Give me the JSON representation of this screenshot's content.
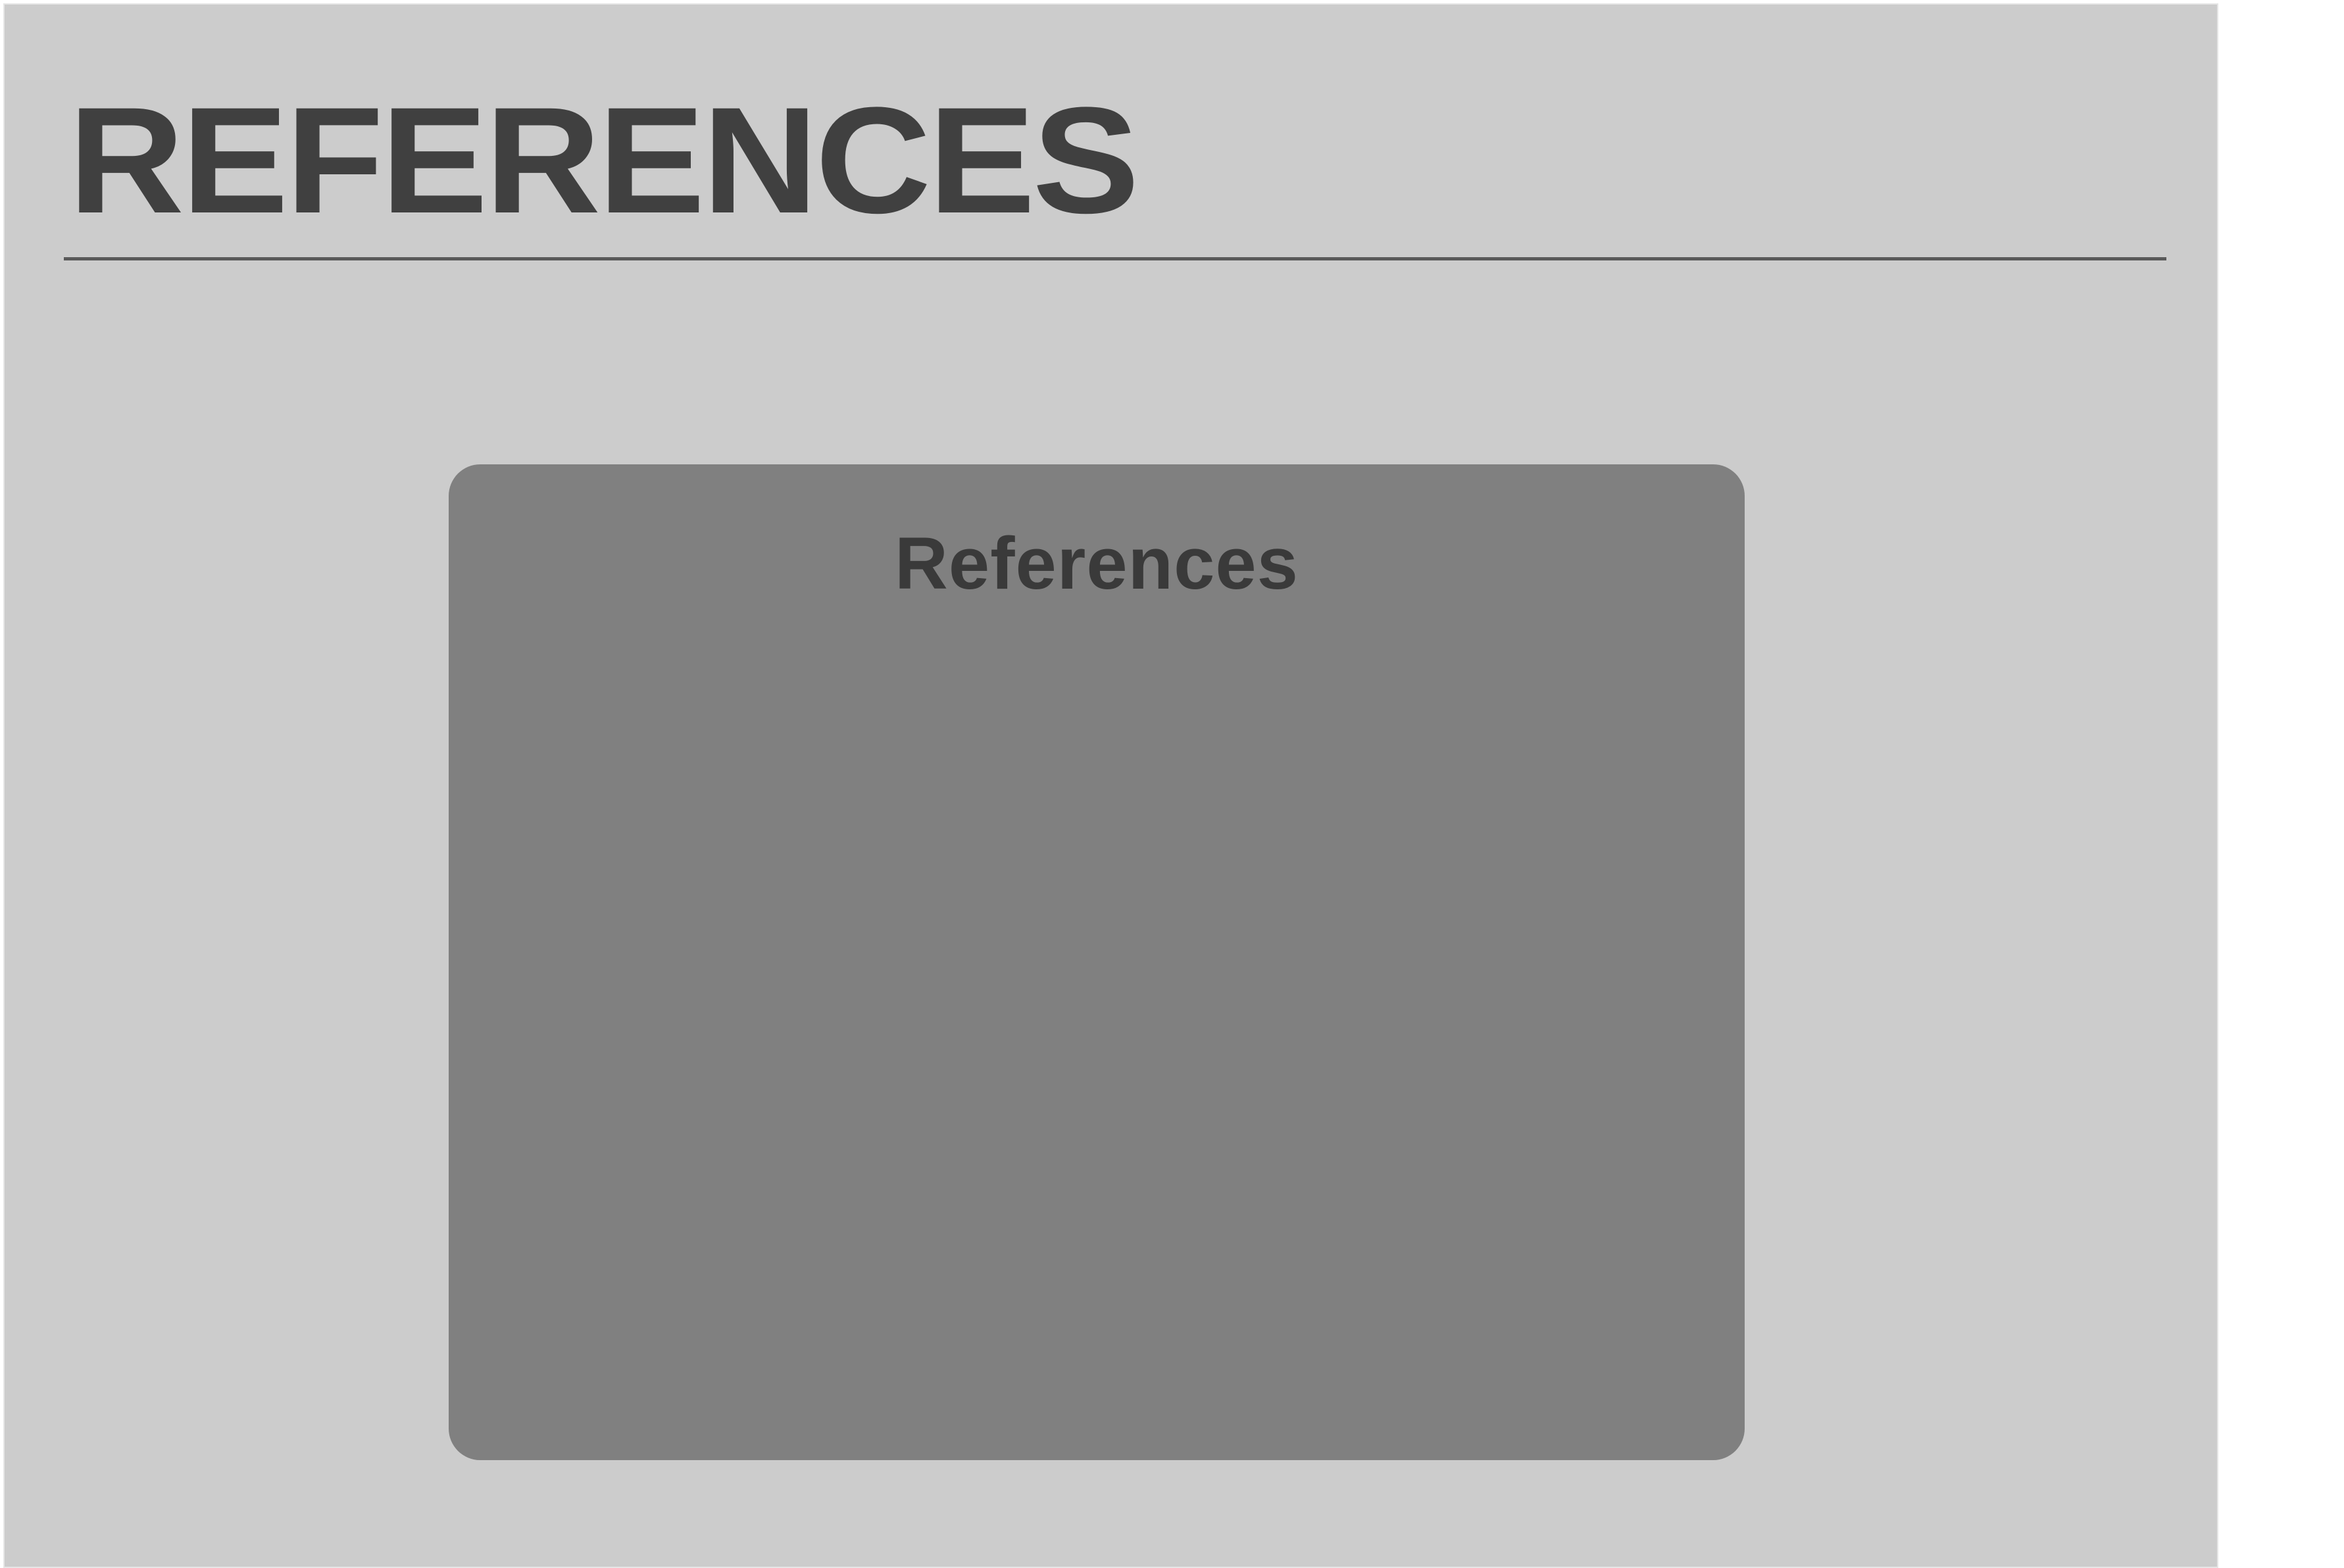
{
  "slide": {
    "title": "REFERENCES",
    "panel": {
      "heading": "References"
    }
  },
  "colors": {
    "slide_background": "#cccccc",
    "title_text": "#404040",
    "rule": "#595959",
    "panel_background": "#808080",
    "panel_heading_text": "#3a3a3a"
  }
}
